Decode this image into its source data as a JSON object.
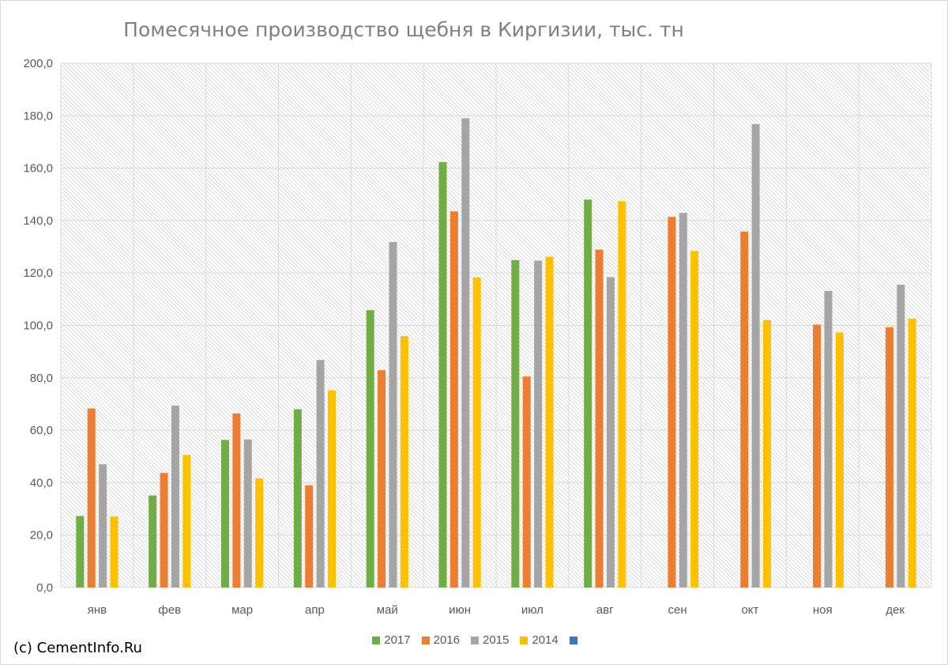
{
  "chart_data": {
    "type": "bar",
    "title": "Помесячное производство щебня в Киргизии, тыс. тн",
    "categories": [
      "янв",
      "фев",
      "мар",
      "апр",
      "май",
      "июн",
      "июл",
      "авг",
      "сен",
      "окт",
      "ноя",
      "дек"
    ],
    "y_ticks": [
      "0,0",
      "20,0",
      "40,0",
      "60,0",
      "80,0",
      "100,0",
      "120,0",
      "140,0",
      "160,0",
      "180,0",
      "200,0"
    ],
    "ylim": [
      0,
      200
    ],
    "grid": true,
    "legend_position": "bottom",
    "series": [
      {
        "name": "2017",
        "color": "#70ad47",
        "values": [
          27.3,
          35.1,
          56.3,
          68.0,
          105.8,
          162.3,
          124.9,
          148.0,
          null,
          null,
          null,
          null
        ]
      },
      {
        "name": "2016",
        "color": "#ed7d31",
        "values": [
          68.3,
          43.7,
          66.4,
          39.0,
          82.9,
          143.5,
          80.5,
          128.9,
          141.4,
          135.8,
          100.3,
          99.3
        ]
      },
      {
        "name": "2015",
        "color": "#a5a5a5",
        "values": [
          47.0,
          69.4,
          56.5,
          86.8,
          131.8,
          179.0,
          124.7,
          118.4,
          142.9,
          176.8,
          113.1,
          115.5
        ]
      },
      {
        "name": "2014",
        "color": "#ffc000",
        "values": [
          27.1,
          50.6,
          41.6,
          75.2,
          95.9,
          118.3,
          126.2,
          147.4,
          128.4,
          102.0,
          97.3,
          102.6
        ]
      },
      {
        "name": "",
        "color": "#4472c4",
        "values": [
          null,
          null,
          null,
          null,
          null,
          null,
          null,
          null,
          null,
          null,
          null,
          null
        ]
      }
    ]
  },
  "credit": "(c) CementInfo.Ru"
}
